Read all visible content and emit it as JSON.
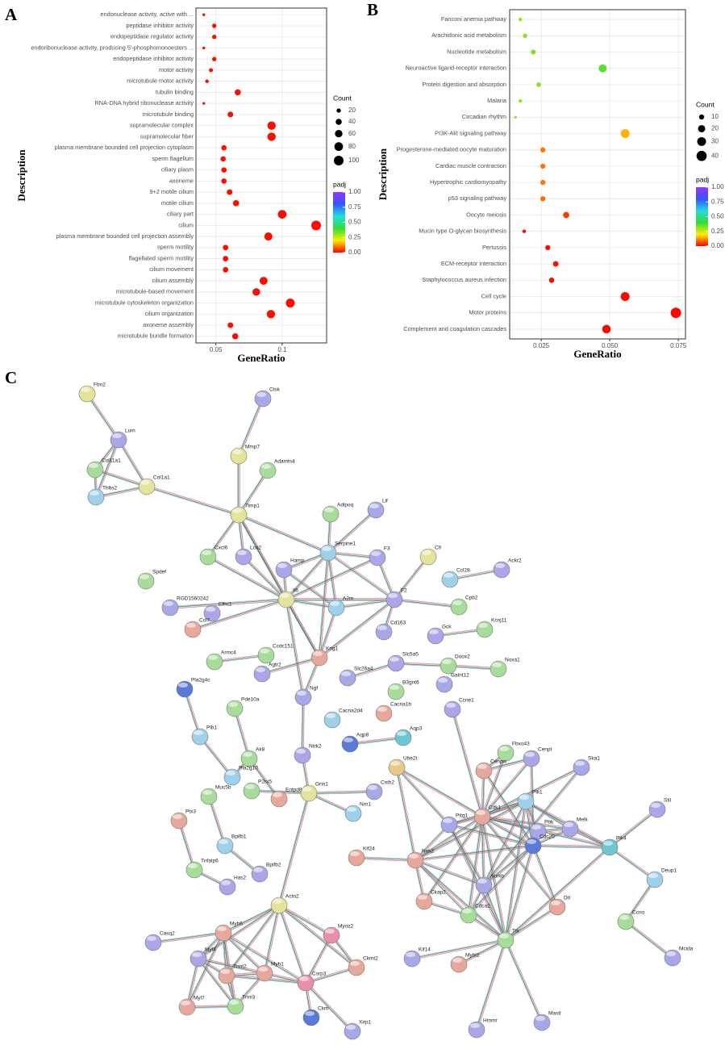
{
  "chart_data": [
    {
      "type": "dot",
      "label": "A",
      "xlabel": "GeneRatio",
      "ylabel": "Description",
      "categories": [
        "endonuclease activity, active with ...",
        "peptidase inhibitor activity",
        "endopeptidase regulator activity",
        "endoribonuclease activity, producing 5'-phosphomonoesters ...",
        "endopeptidase inhibitor activity",
        "motor activity",
        "microtubule motor activity",
        "tubulin binding",
        "RNA-DNA hybrid ribonuclease activity",
        "microtubule binding",
        "supramolecular complex",
        "supramolecular fiber",
        "plasma membrane bounded cell projection cytoplasm",
        "sperm flagellum",
        "ciliary plasm",
        "axoneme",
        "9+2 motile cilium",
        "motile cilium",
        "ciliary part",
        "cilium",
        "plasma membrane bounded cell projection assembly",
        "sperm motility",
        "flagellated sperm motility",
        "cilium movement",
        "cilium assembly",
        "microtubule-based movement",
        "microtubule cytoskeleton organization",
        "cilium organization",
        "axoneme assembly",
        "microtubule bundle formation"
      ],
      "values": [
        0.0409,
        0.0488,
        0.0488,
        0.0409,
        0.0488,
        0.0463,
        0.0433,
        0.0665,
        0.0409,
        0.061,
        0.092,
        0.092,
        0.0561,
        0.0555,
        0.0561,
        0.0561,
        0.0604,
        0.0652,
        0.1,
        0.1256,
        0.0896,
        0.0573,
        0.0573,
        0.0573,
        0.086,
        0.0805,
        0.1061,
        0.0915,
        0.061,
        0.0646
      ],
      "count": [
        8,
        20,
        20,
        8,
        20,
        17,
        14,
        40,
        8,
        35,
        75,
        75,
        30,
        30,
        30,
        30,
        35,
        40,
        80,
        100,
        70,
        32,
        32,
        32,
        68,
        62,
        85,
        75,
        35,
        40
      ],
      "padj": [
        0.01,
        0.01,
        0.01,
        0.01,
        0.01,
        0.01,
        0.01,
        0.01,
        0.01,
        0.01,
        0.01,
        0.01,
        0.01,
        0.01,
        0.01,
        0.01,
        0.01,
        0.01,
        0.01,
        0.01,
        0.01,
        0.01,
        0.01,
        0.01,
        0.01,
        0.01,
        0.01,
        0.01,
        0.01,
        0.01
      ],
      "xlim": [
        0.035,
        0.1335
      ],
      "xticks": [
        0.05,
        0.1
      ],
      "size_title": "Count",
      "size_ticks": [
        20,
        40,
        60,
        80,
        100
      ],
      "color_title": "padj",
      "padj_ticks": [
        {
          "value": 0,
          "label": "0.00"
        },
        {
          "value": 0.25,
          "label": "0.25"
        },
        {
          "value": 0.5,
          "label": "0.50"
        },
        {
          "value": 0.75,
          "label": "0.75"
        },
        {
          "value": 1,
          "label": "1.00"
        }
      ],
      "padj_colors": [
        "#ff0000",
        "#ffee00",
        "#33dd33",
        "#22dddd",
        "#3355ff",
        "#9933ff"
      ],
      "grid": true
    },
    {
      "type": "dot",
      "label": "B",
      "xlabel": "GeneRatio",
      "ylabel": "Description",
      "categories": [
        "Fanconi anemia pathway",
        "Arachidonic acid metabolism",
        "Nucleotide metabolism",
        "Neuroactive ligand-receptor interaction",
        "Protein digestion and absorption",
        "Malaria",
        "Circadian rhythm",
        "PI3K-Akt signaling pathway",
        "Progesterone-mediated oocyte maturation",
        "Cardiac muscle contraction",
        "Hypertrophic cardiomyopathy",
        "p53 signaling pathway",
        "Oocyte meiosis",
        "Mucin type O-glycan biosynthesis",
        "Pertussis",
        "ECM-receptor interaction",
        "Staphylococcus aureus infection",
        "Cell cycle",
        "Motor proteins",
        "Complement and coagulation cascades"
      ],
      "values": [
        0.0174,
        0.0191,
        0.0221,
        0.0474,
        0.0241,
        0.0174,
        0.0156,
        0.0556,
        0.0256,
        0.0256,
        0.0256,
        0.0256,
        0.0341,
        0.0188,
        0.0274,
        0.0303,
        0.0288,
        0.0556,
        0.0741,
        0.0488
      ],
      "count": [
        5,
        7,
        9,
        25,
        8,
        5,
        3,
        30,
        10,
        10,
        10,
        10,
        15,
        5,
        10,
        12,
        11,
        30,
        42,
        28
      ],
      "padj": [
        0.3,
        0.32,
        0.33,
        0.36,
        0.32,
        0.3,
        0.3,
        0.15,
        0.1,
        0.1,
        0.1,
        0.09,
        0.05,
        0.01,
        0.01,
        0.01,
        0.01,
        0.005,
        0.005,
        0.005
      ],
      "xlim": [
        0.0135,
        0.0776
      ],
      "xticks": [
        0.025,
        {
          "value": 0.05,
          "label": "0.050"
        },
        0.075
      ],
      "size_title": "Count",
      "size_ticks": [
        10,
        20,
        30,
        40
      ],
      "color_title": "padj",
      "padj_ticks": [
        {
          "value": 0,
          "label": "0.00"
        },
        {
          "value": 0.25,
          "label": "0.25"
        },
        {
          "value": 0.5,
          "label": "0.50"
        },
        {
          "value": 0.75,
          "label": "0.75"
        },
        {
          "value": 1,
          "label": "1.00"
        }
      ],
      "padj_colors": [
        "#ff0000",
        "#ffee00",
        "#33dd33",
        "#22dddd",
        "#3355ff",
        "#9933ff"
      ],
      "grid": true
    }
  ],
  "network": {
    "label": "C",
    "nodes": [
      "Fbn2",
      "Ctsk",
      "Lum",
      "Col11a1",
      "Col1a1",
      "Thbs2",
      "Mmp7",
      "Adamts4",
      "Timp1",
      "Adipoq",
      "Lif",
      "Serpine1",
      "Cxcl6",
      "Lcn2",
      "Hamp",
      "F3",
      "Cfi",
      "Ccl28",
      "Ackr2",
      "Spdef",
      "RGD1560242",
      "Efhc1",
      "Il6",
      "A2m",
      "F2",
      "Cpb2",
      "Ccl7",
      "Cd163",
      "Gck",
      "Kcnj11",
      "Armc4",
      "Ccdc151",
      "Kng1",
      "Agtr2",
      "Slc5a5",
      "Duox2",
      "Noxa1",
      "Slc26a4",
      "Galnt12",
      "B3gnt6",
      "Pla2g4c",
      "Pde10a",
      "Ngf",
      "Ccne1",
      "Cacna2d4",
      "Cacna1b",
      "Plb1",
      "Ak8",
      "Ntrk2",
      "Aqp8",
      "Aqp3",
      "Ube2t",
      "Fbxo43",
      "Cenpt",
      "Ska1",
      "Cenpw",
      "Pla2g10",
      "Muc5b",
      "Entpd8",
      "P2rx5",
      "Grin1",
      "Cnih2",
      "Plk1",
      "Cdk1",
      "Pttg1",
      "Melk",
      "Stil",
      "Ptx3",
      "Nrn1",
      "Pbk",
      "Plk4",
      "Cdc20",
      "Bpifb1",
      "Kif24",
      "Nek2",
      "Tnfaip6",
      "Aurkb",
      "Ckap2",
      "Deup1",
      "Cdca2",
      "Dtl",
      "Bpifb2",
      "Has2",
      "Actn2",
      "Ccno",
      "Myh6",
      "Myoz2",
      "Casq2",
      "Ttk",
      "Mcida",
      "Myl4",
      "Ckmt2",
      "Tnnt2",
      "Myh1",
      "Csrp3",
      "Kif14",
      "Mybl2",
      "Myl7",
      "Tnni3",
      "Ckm",
      "Xirp1",
      "Hmmr",
      "Mastl"
    ]
  }
}
